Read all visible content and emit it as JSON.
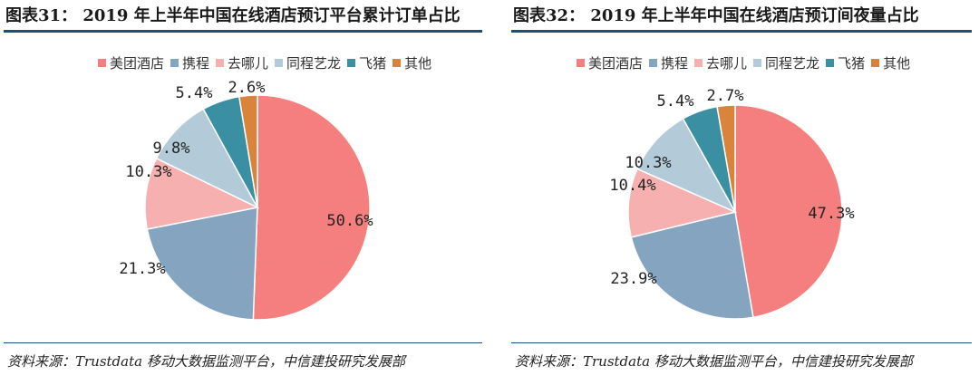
{
  "chart_data": [
    {
      "type": "pie",
      "title": "图表31： 2019 年上半年中国在线酒店预订平台累计订单占比",
      "legend_position": "top",
      "categories": [
        "美团酒店",
        "携程",
        "去哪儿",
        "同程艺龙",
        "飞猪",
        "其他"
      ],
      "values": [
        50.6,
        21.3,
        10.3,
        9.8,
        5.4,
        2.6
      ],
      "value_labels": [
        "50.6%",
        "21.3%",
        "10.3%",
        "9.8%",
        "5.4%",
        "2.6%"
      ],
      "colors": [
        "#F47F7E",
        "#85A4C0",
        "#F6B0B0",
        "#B3CAD9",
        "#3A8FA3",
        "#D9843A"
      ],
      "source": "资料来源：Trustdata 移动大数据监测平台，中信建投研究发展部"
    },
    {
      "type": "pie",
      "title": "图表32： 2019 年上半年中国在线酒店预订间夜量占比",
      "legend_position": "top",
      "categories": [
        "美团酒店",
        "携程",
        "去哪儿",
        "同程艺龙",
        "飞猪",
        "其他"
      ],
      "values": [
        47.3,
        23.9,
        10.4,
        10.3,
        5.4,
        2.7
      ],
      "value_labels": [
        "47.3%",
        "23.9%",
        "10.4%",
        "10.3%",
        "5.4%",
        "2.7%"
      ],
      "colors": [
        "#F47F7E",
        "#85A4C0",
        "#F6B0B0",
        "#B3CAD9",
        "#3A8FA3",
        "#D9843A"
      ],
      "source": "资料来源：Trustdata 移动大数据监测平台，中信建投研究发展部"
    }
  ]
}
